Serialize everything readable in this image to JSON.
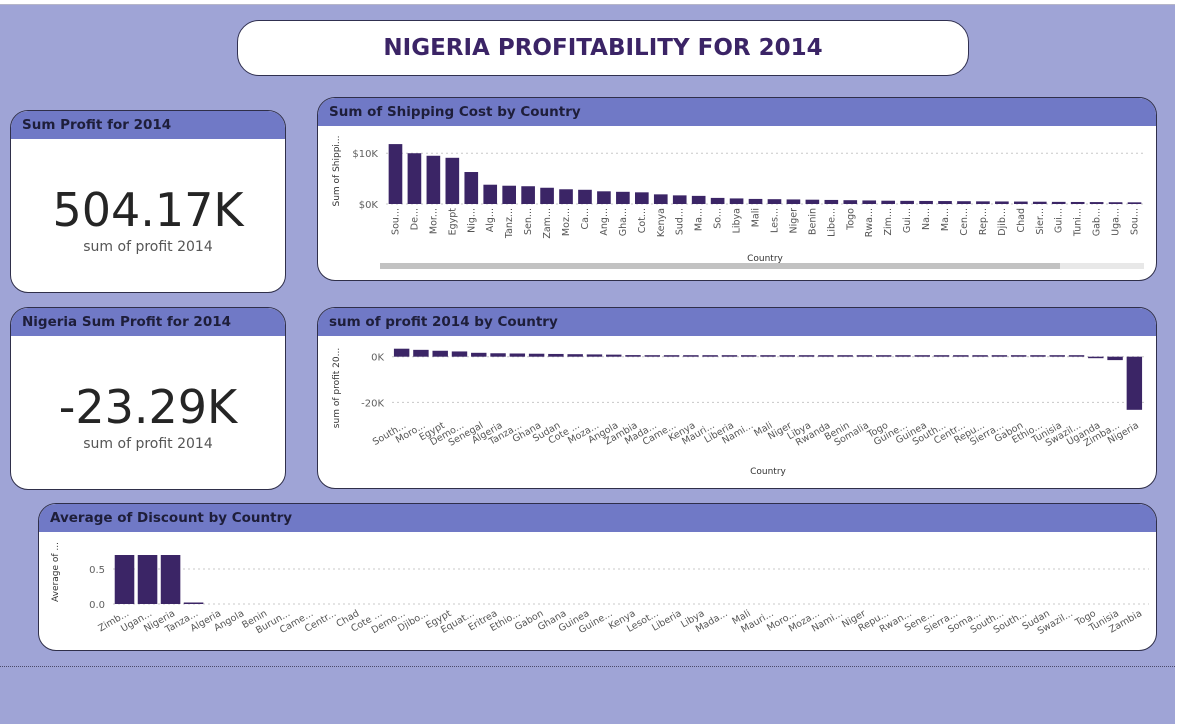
{
  "page": {
    "title": "NIGERIA PROFITABILITY FOR 2014"
  },
  "kpis": [
    {
      "title": "Sum Profit for 2014",
      "value": "504.17K",
      "label": "sum of profit 2014"
    },
    {
      "title": "Nigeria Sum Profit for 2014",
      "value": "-23.29K",
      "label": "sum of profit 2014"
    }
  ],
  "colors": {
    "bar": "#3b2566",
    "header": "#7079c6",
    "background": "#9fa4d6",
    "title_text": "#3b2466"
  },
  "chart_data": [
    {
      "type": "bar",
      "title": "Sum of Shipping Cost by Country",
      "xlabel": "Country",
      "ylabel": "Sum of Shippi...",
      "yticks": [
        "$10K",
        "$0K"
      ],
      "ylim": [
        0,
        13000
      ],
      "scrollbar": true,
      "categories": [
        "Sou...",
        "De...",
        "Mor...",
        "Egypt",
        "Nig...",
        "Alg...",
        "Tanz...",
        "Sen...",
        "Zam...",
        "Moz...",
        "Ca...",
        "Ang...",
        "Gha...",
        "Cot...",
        "Kenya",
        "Sud...",
        "Ma...",
        "So...",
        "Libya",
        "Mali",
        "Les...",
        "Niger",
        "Benin",
        "Libe...",
        "Togo",
        "Rwa...",
        "Zim...",
        "Gui...",
        "Na...",
        "Ma...",
        "Cen...",
        "Rep...",
        "Djib...",
        "Chad",
        "Sier...",
        "Gui...",
        "Tuni...",
        "Gab...",
        "Uga...",
        "Sou..."
      ],
      "values": [
        11800,
        10000,
        9500,
        9100,
        6300,
        3800,
        3600,
        3500,
        3200,
        2900,
        2800,
        2500,
        2400,
        2300,
        1900,
        1700,
        1600,
        1200,
        1100,
        1000,
        950,
        900,
        850,
        800,
        750,
        700,
        650,
        620,
        600,
        580,
        550,
        520,
        500,
        480,
        450,
        420,
        400,
        380,
        350,
        330
      ]
    },
    {
      "type": "bar",
      "title": "sum of profit 2014 by Country",
      "xlabel": "Country",
      "ylabel": "sum of profit 20...",
      "yticks": [
        "0K",
        "-20K"
      ],
      "ylim": [
        -26000,
        6000
      ],
      "categories": [
        "South...",
        "Moro...",
        "Egypt",
        "Demo...",
        "Senegal",
        "Algeria",
        "Tanza...",
        "Ghana",
        "Sudan",
        "Cote ...",
        "Moza...",
        "Angola",
        "Zambia",
        "Mada...",
        "Came...",
        "Kenya",
        "Mauri...",
        "Liberia",
        "Nami...",
        "Mali",
        "Niger",
        "Libya",
        "Rwanda",
        "Benin",
        "Somalia",
        "Togo",
        "Guine...",
        "Guinea",
        "South...",
        "Centr...",
        "Repu...",
        "Sierra...",
        "Gabon",
        "Ethio...",
        "Tunisia",
        "Swazil...",
        "Uganda",
        "Zimba...",
        "Nigeria"
      ],
      "values": [
        3500,
        3000,
        2600,
        2300,
        1700,
        1500,
        1400,
        1300,
        1200,
        1100,
        1000,
        900,
        700,
        600,
        500,
        450,
        400,
        350,
        300,
        250,
        230,
        220,
        200,
        180,
        170,
        160,
        150,
        140,
        130,
        120,
        110,
        100,
        90,
        80,
        60,
        40,
        -500,
        -1500,
        -23290
      ]
    },
    {
      "type": "bar",
      "title": "Average of Discount by Country",
      "xlabel": "",
      "ylabel": "Average of ...",
      "yticks": [
        "0.5",
        "0.0"
      ],
      "ylim": [
        0,
        0.9
      ],
      "categories": [
        "Zimb...",
        "Ugan...",
        "Nigeria",
        "Tanza...",
        "Algeria",
        "Angola",
        "Benin",
        "Burun...",
        "Came...",
        "Centr...",
        "Chad",
        "Cote ...",
        "Demo...",
        "Djibo...",
        "Egypt",
        "Equat...",
        "Eritrea",
        "Ethio...",
        "Gabon",
        "Ghana",
        "Guinea",
        "Guine...",
        "Kenya",
        "Lesot...",
        "Liberia",
        "Libya",
        "Mada...",
        "Mali",
        "Mauri...",
        "Moro...",
        "Moza...",
        "Nami...",
        "Niger",
        "Repu...",
        "Rwan...",
        "Sene...",
        "Sierra...",
        "Soma...",
        "South...",
        "South...",
        "Sudan",
        "Swazil...",
        "Togo",
        "Tunisia",
        "Zambia"
      ],
      "values": [
        0.7,
        0.7,
        0.7,
        0.02,
        0,
        0,
        0,
        0,
        0,
        0,
        0,
        0,
        0,
        0,
        0,
        0,
        0,
        0,
        0,
        0,
        0,
        0,
        0,
        0,
        0,
        0,
        0,
        0,
        0,
        0,
        0,
        0,
        0,
        0,
        0,
        0,
        0,
        0,
        0,
        0,
        0,
        0,
        0,
        0,
        0
      ]
    }
  ]
}
